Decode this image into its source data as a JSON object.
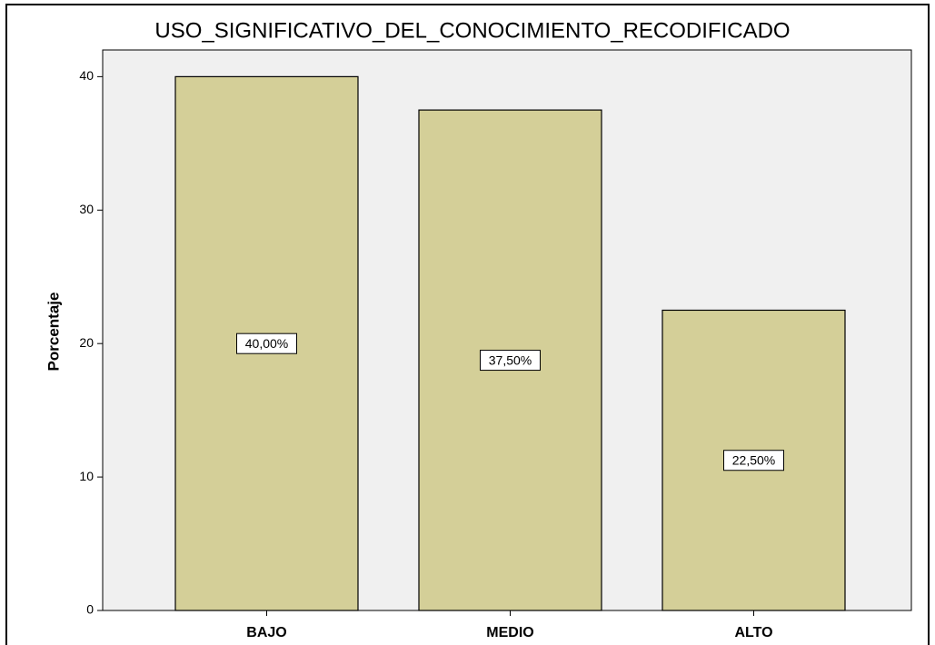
{
  "chart_data": {
    "type": "bar",
    "title": "USO_SIGNIFICATIVO_DEL_CONOCIMIENTO_RECODIFICADO",
    "y_label": "Porcentaje",
    "categories": [
      "BAJO",
      "MEDIO",
      "ALTO"
    ],
    "values": [
      40,
      37.5,
      22.5
    ],
    "value_labels": [
      "40,00%",
      "37,50%",
      "22,50%"
    ],
    "color": "#d4cf98",
    "ylim": [
      0,
      42
    ],
    "yticks": [
      0,
      10,
      20,
      30,
      40
    ],
    "grid": false
  }
}
